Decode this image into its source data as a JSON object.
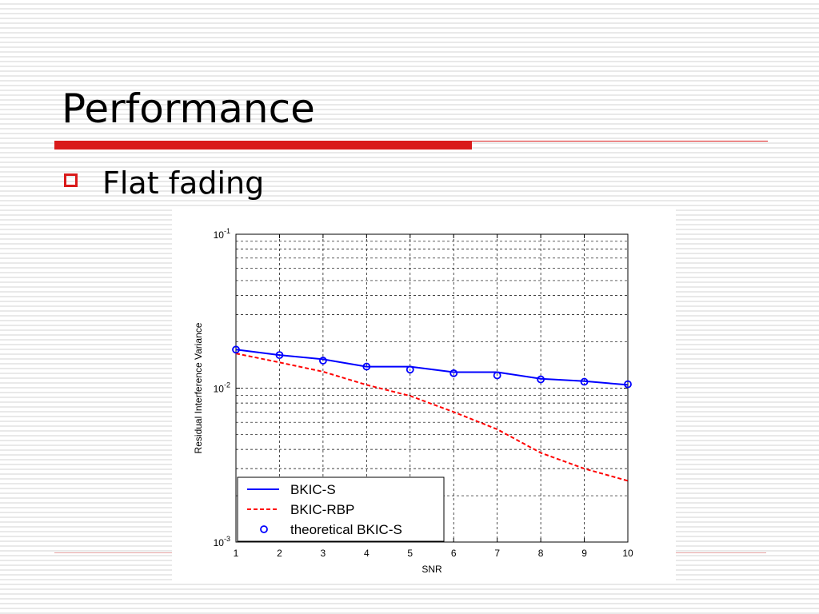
{
  "slide": {
    "title": "Performance",
    "bullet": "Flat fading"
  },
  "colors": {
    "accent": "#d91a1a",
    "series_blue": "#0000ff",
    "series_red": "#ff0000"
  },
  "chart_data": {
    "type": "line",
    "title": "",
    "xlabel": "SNR",
    "ylabel": "Residual Interference Variance",
    "xlim": [
      1,
      10
    ],
    "ylim": [
      0.001,
      0.1
    ],
    "yscale": "log",
    "grid": true,
    "x_ticks": [
      "1",
      "2",
      "3",
      "4",
      "5",
      "6",
      "7",
      "8",
      "9",
      "10"
    ],
    "y_ticks": [
      {
        "value": 0.1,
        "base": "10",
        "exp": "-1"
      },
      {
        "value": 0.01,
        "base": "10",
        "exp": "-2"
      },
      {
        "value": 0.001,
        "base": "10",
        "exp": "-3"
      }
    ],
    "legend_position": "bottom-left",
    "series": [
      {
        "name": "BKIC-S",
        "style": "solid",
        "color": "#0000ff",
        "x": [
          1,
          2,
          3,
          4,
          5,
          6,
          7,
          8,
          9,
          10
        ],
        "y": [
          0.0178,
          0.0164,
          0.0154,
          0.0138,
          0.0138,
          0.0127,
          0.0127,
          0.0115,
          0.0111,
          0.0105
        ]
      },
      {
        "name": "BKIC-RBP",
        "style": "dashed",
        "color": "#ff0000",
        "x": [
          1,
          2,
          3,
          4,
          5,
          6,
          7,
          8,
          9,
          10
        ],
        "y": [
          0.0168,
          0.0147,
          0.0128,
          0.0105,
          0.0089,
          0.007,
          0.0054,
          0.0038,
          0.003,
          0.0025
        ]
      },
      {
        "name": "theoretical BKIC-S",
        "style": "markers",
        "marker": "circle",
        "color": "#0000ff",
        "x": [
          1,
          2,
          3,
          4,
          5,
          6,
          7,
          8,
          9,
          10
        ],
        "y": [
          0.0178,
          0.0164,
          0.0151,
          0.0138,
          0.0132,
          0.0125,
          0.0121,
          0.0114,
          0.011,
          0.0106
        ]
      }
    ]
  }
}
